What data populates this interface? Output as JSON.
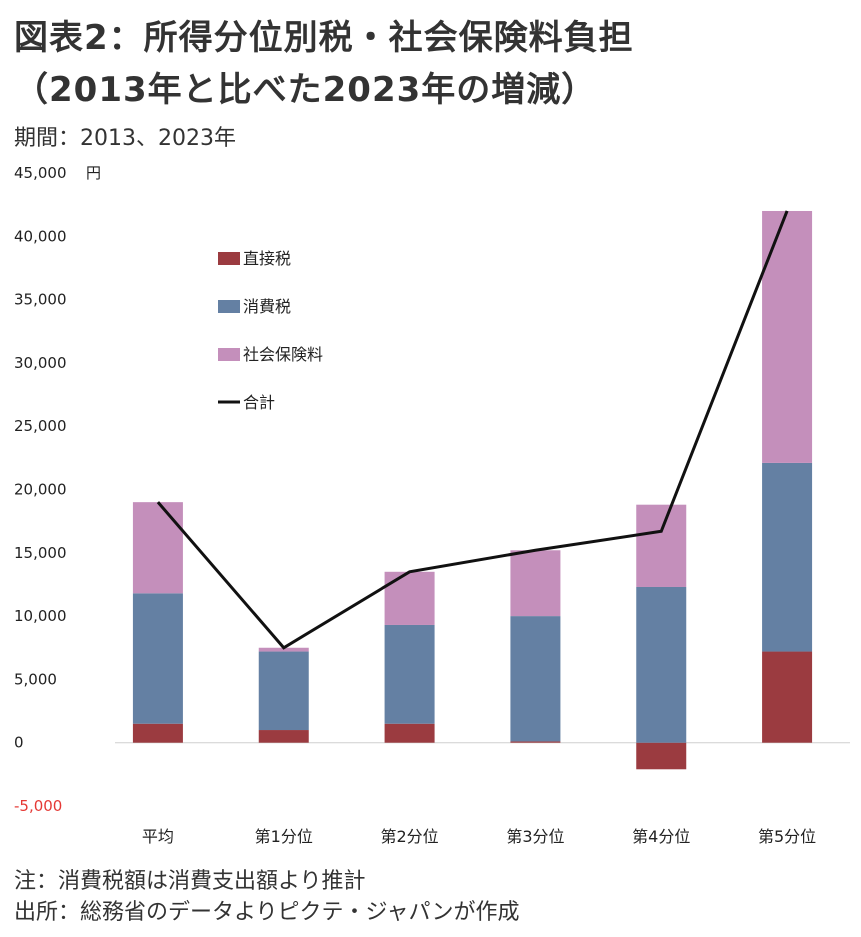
{
  "title_line1": "図表2：所得分位別税・社会保険料負担",
  "title_line2": "（2013年と比べた2023年の増減）",
  "period": "期間：2013、2023年",
  "notes": [
    "注：消費税額は消費支出額より推計",
    "出所：総務省のデータよりピクテ・ジャパンが作成"
  ],
  "colors": {
    "direct_tax": "#9b3b40",
    "consumption_tax": "#6480a3",
    "social_insurance": "#c48fbb",
    "total": "#111111",
    "negative_tick": "#e53935"
  },
  "chart_data": {
    "type": "bar",
    "stacked": true,
    "categories": [
      "平均",
      "第1分位",
      "第2分位",
      "第3分位",
      "第4分位",
      "第5分位"
    ],
    "series": [
      {
        "name": "直接税",
        "values": [
          1500,
          1000,
          1500,
          100,
          -2100,
          7200
        ]
      },
      {
        "name": "消費税",
        "values": [
          10300,
          6200,
          7800,
          9900,
          12300,
          14900
        ]
      },
      {
        "name": "社会保険料",
        "values": [
          7200,
          300,
          4200,
          5200,
          6500,
          19900
        ]
      }
    ],
    "line": {
      "name": "合計",
      "values": [
        19000,
        7500,
        13500,
        15200,
        16700,
        42000
      ]
    },
    "ylim": [
      -5000,
      45000
    ],
    "yticks": [
      -5000,
      0,
      5000,
      10000,
      15000,
      20000,
      25000,
      30000,
      35000,
      40000,
      45000
    ],
    "ytick_labels": [
      "-5,000",
      "0",
      "5,000",
      "10,000",
      "15,000",
      "20,000",
      "25,000",
      "30,000",
      "35,000",
      "40,000",
      "45,000"
    ],
    "yunit": "円",
    "grid": false,
    "legend_position": "top-left"
  }
}
